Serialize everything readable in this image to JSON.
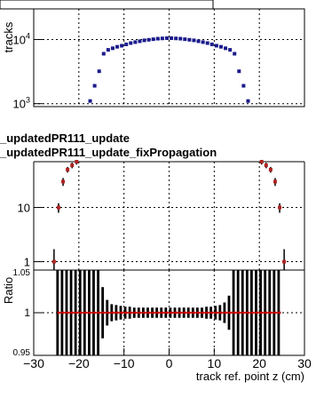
{
  "legend": {
    "entries": [
      "_updatedPR111_update",
      "_updatedPR111_update_fixPropagation"
    ]
  },
  "top_axis_label": "tracks",
  "ratio_axis_label": "Ratio",
  "x_axis_label": "track ref. point z (cm)",
  "colors": {
    "series_a": "#1a1a8c",
    "series_b": "#b22222",
    "ratio": "#cc0000",
    "error_band": "#000000"
  },
  "chart_data": [
    {
      "type": "scatter",
      "panel": "top",
      "ylabel": "tracks",
      "yscale": "log",
      "ylim": [
        900,
        30000
      ],
      "xlim": [
        -30,
        30
      ],
      "grid": true,
      "yticks": [
        {
          "value": 10000,
          "base": "10",
          "exp": "4"
        },
        {
          "value": 1000,
          "base": "10",
          "exp": "3"
        }
      ],
      "x": [
        -17.5,
        -16.5,
        -15.5,
        -14.5,
        -13.5,
        -12.5,
        -11.5,
        -10.5,
        -9.5,
        -8.5,
        -7.5,
        -6.5,
        -5.5,
        -4.5,
        -3.5,
        -2.5,
        -1.5,
        -0.5,
        0.5,
        1.5,
        2.5,
        3.5,
        4.5,
        5.5,
        6.5,
        7.5,
        8.5,
        9.5,
        10.5,
        11.5,
        12.5,
        13.5,
        14.5,
        15.5,
        16.5,
        17.5
      ],
      "values": [
        1100,
        1900,
        3200,
        6000,
        6900,
        7300,
        7700,
        8000,
        8400,
        8800,
        9100,
        9400,
        9700,
        9900,
        10100,
        10300,
        10400,
        10500,
        10500,
        10400,
        10300,
        10100,
        9900,
        9700,
        9400,
        9100,
        8800,
        8400,
        8000,
        7700,
        7300,
        6900,
        6000,
        3200,
        1900,
        1100
      ]
    },
    {
      "type": "scatter",
      "panel": "middle",
      "yscale": "log",
      "ylim": [
        0.7,
        70
      ],
      "xlim": [
        -30,
        30
      ],
      "grid": true,
      "yticks": [
        "10",
        "1"
      ],
      "x": [
        -25.5,
        -24.5,
        -23.5,
        -22.5,
        -21.5,
        -20.5,
        20.5,
        21.5,
        22.5,
        23.5,
        24.5,
        25.5
      ],
      "values": [
        1,
        10,
        30,
        50,
        60,
        70,
        70,
        60,
        50,
        30,
        10,
        1
      ],
      "errors": [
        0.7,
        2,
        5,
        6,
        7,
        8,
        8,
        7,
        6,
        5,
        2,
        0.7
      ]
    },
    {
      "type": "scatter",
      "panel": "ratio",
      "ylabel": "Ratio",
      "xlabel": "track ref. point z (cm)",
      "ylim": [
        0.95,
        1.05
      ],
      "xlim": [
        -30,
        30
      ],
      "grid": true,
      "yticks": [
        "1.05",
        "1",
        "0.95"
      ],
      "xticks": [
        "−30",
        "−20",
        "−10",
        "0",
        "10",
        "20",
        "30"
      ],
      "x": [
        -24.5,
        -23.5,
        -22.5,
        -21.5,
        -20.5,
        -19.5,
        -18.5,
        -17.5,
        -16.5,
        -15.5,
        -14.5,
        -13.5,
        -12.5,
        -11.5,
        -10.5,
        -9.5,
        -8.5,
        -7.5,
        -6.5,
        -5.5,
        -4.5,
        -3.5,
        -2.5,
        -1.5,
        -0.5,
        0.5,
        1.5,
        2.5,
        3.5,
        4.5,
        5.5,
        6.5,
        7.5,
        8.5,
        9.5,
        10.5,
        11.5,
        12.5,
        13.5,
        14.5,
        15.5,
        16.5,
        17.5,
        18.5,
        19.5,
        20.5,
        21.5,
        22.5,
        23.5,
        24.5
      ],
      "values": [
        1,
        1,
        1,
        1,
        1,
        1,
        1,
        1,
        1,
        1,
        1,
        1,
        1,
        1,
        1,
        1,
        1,
        1,
        1,
        1,
        1,
        1,
        1,
        1,
        1,
        1,
        1,
        1,
        1,
        1,
        1,
        1,
        1,
        1,
        1,
        1,
        1,
        1,
        1,
        1,
        1,
        1,
        1,
        1,
        1,
        1,
        1,
        1,
        1,
        1
      ],
      "errors": [
        0.06,
        0.06,
        0.06,
        0.06,
        0.06,
        0.06,
        0.06,
        0.06,
        0.06,
        0.06,
        0.03,
        0.015,
        0.01,
        0.009,
        0.008,
        0.007,
        0.007,
        0.006,
        0.006,
        0.006,
        0.006,
        0.006,
        0.006,
        0.006,
        0.006,
        0.006,
        0.006,
        0.006,
        0.006,
        0.006,
        0.006,
        0.006,
        0.006,
        0.007,
        0.007,
        0.008,
        0.009,
        0.012,
        0.02,
        0.06,
        0.06,
        0.06,
        0.06,
        0.06,
        0.06,
        0.06,
        0.06,
        0.06,
        0.06,
        0.06
      ]
    }
  ]
}
